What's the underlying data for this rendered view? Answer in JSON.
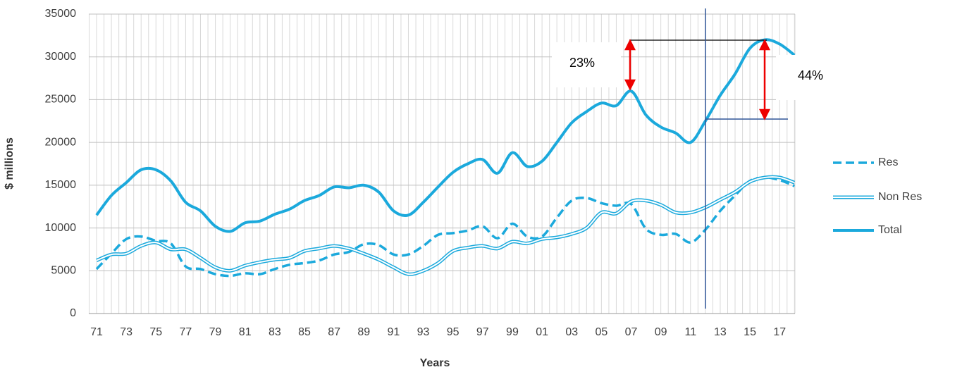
{
  "chart_data": {
    "type": "line",
    "x_label": "Years",
    "y_label": "$ millions",
    "categories": [
      "71",
      null,
      "73",
      null,
      "75",
      null,
      "77",
      null,
      "79",
      null,
      "81",
      null,
      "83",
      null,
      "85",
      null,
      "87",
      null,
      "89",
      null,
      "91",
      null,
      "93",
      null,
      "95",
      null,
      "97",
      null,
      "99",
      null,
      "01",
      null,
      "03",
      null,
      "05",
      null,
      "07",
      null,
      "09",
      null,
      "11",
      null,
      "13",
      null,
      "15",
      null,
      "17",
      null
    ],
    "series": [
      {
        "name": "Res",
        "color": "#1ba9dc",
        "style": "dashed",
        "values": [
          5200,
          7000,
          8700,
          9000,
          8500,
          8200,
          5500,
          5200,
          4600,
          4400,
          4700,
          4600,
          5200,
          5700,
          5900,
          6200,
          6900,
          7200,
          8100,
          8000,
          6900,
          6900,
          7900,
          9200,
          9400,
          9700,
          10200,
          8800,
          10500,
          9000,
          9000,
          11200,
          13200,
          13500,
          12900,
          12600,
          12800,
          9900,
          9200,
          9300,
          8300,
          9800,
          12000,
          13800,
          15500,
          15900,
          15600,
          14900
        ]
      },
      {
        "name": "Non Res",
        "color": "#1ba9dc",
        "style": "double",
        "values": [
          6200,
          6900,
          7000,
          7900,
          8300,
          7500,
          7500,
          6500,
          5400,
          5000,
          5600,
          6000,
          6300,
          6500,
          7300,
          7600,
          7900,
          7600,
          7000,
          6300,
          5400,
          4600,
          5000,
          5900,
          7300,
          7700,
          7900,
          7600,
          8400,
          8200,
          8700,
          8900,
          9300,
          10000,
          11800,
          11700,
          13100,
          13200,
          12700,
          11800,
          11800,
          12400,
          13300,
          14200,
          15400,
          15900,
          15900,
          15300
        ]
      },
      {
        "name": "Total",
        "color": "#1ba9dc",
        "style": "solid",
        "values": [
          11500,
          13800,
          15300,
          16800,
          16800,
          15500,
          13000,
          12000,
          10200,
          9600,
          10600,
          10800,
          11600,
          12200,
          13200,
          13800,
          14800,
          14700,
          15000,
          14200,
          12000,
          11500,
          13000,
          14800,
          16500,
          17500,
          18000,
          16400,
          18800,
          17200,
          17800,
          20000,
          22300,
          23600,
          24600,
          24300,
          26000,
          23200,
          21800,
          21100,
          20000,
          22500,
          25500,
          28000,
          31000,
          32000,
          31500,
          30200
        ]
      }
    ],
    "ylim": [
      0,
      35000
    ],
    "yticks": [
      0,
      5000,
      10000,
      15000,
      20000,
      25000,
      30000,
      35000
    ],
    "grid": true,
    "legend": "right",
    "annotations": [
      "23%",
      "44%"
    ]
  }
}
